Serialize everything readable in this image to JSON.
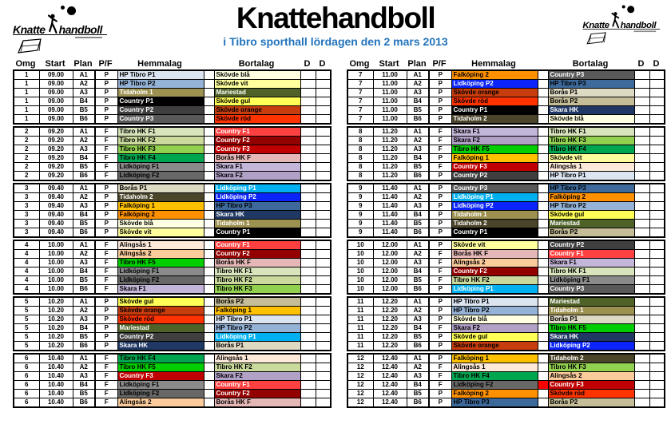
{
  "title": "Knattehandboll",
  "subtitle": "i Tibro sporthall lördagen den 2 mars 2013",
  "logo": {
    "word1": "Knatte",
    "word2": "handboll"
  },
  "columns": {
    "omg": "Omg",
    "start": "Start",
    "plan": "Plan",
    "pf": "P/F",
    "home": "Hemmalag",
    "away": "Bortalag",
    "d": "D"
  },
  "team_colors": {
    "HP Tibro P1": {
      "bg": "#DBE5F1",
      "fg": "#000000"
    },
    "HP Tibro P2": {
      "bg": "#95B3D7",
      "fg": "#000000"
    },
    "HP Tibro P3": {
      "bg": "#3D6A9B",
      "fg": "#000000"
    },
    "Tidaholm 1": {
      "bg": "#9C9150",
      "fg": "#FFFFFF"
    },
    "Tidaholm 2": {
      "bg": "#4A452A",
      "fg": "#FFFFFF"
    },
    "Mariestad": {
      "bg": "#4F6228",
      "fg": "#FFFFFF"
    },
    "Country P1": {
      "bg": "#000000",
      "fg": "#FFFFFF"
    },
    "Country P2": {
      "bg": "#3F3F3F",
      "fg": "#FFFFFF"
    },
    "Country P3": {
      "bg": "#595959",
      "fg": "#FFFFFF"
    },
    "Skövde blå": {
      "bg": "#FFFFE1",
      "fg": "#000000"
    },
    "Skövde vit": {
      "bg": "#FFFF9E",
      "fg": "#000000"
    },
    "Skövde gul": {
      "bg": "#FFFF55",
      "fg": "#000000"
    },
    "Skövde orange": {
      "bg": "#C83D0D",
      "fg": "#000000"
    },
    "Skövde röd": {
      "bg": "#FF3300",
      "fg": "#000000"
    },
    "Borås P1": {
      "bg": "#DDD9C3",
      "fg": "#000000"
    },
    "Borås P2": {
      "bg": "#C4BD97",
      "fg": "#000000"
    },
    "Falköping 1": {
      "bg": "#FFC000",
      "fg": "#000000"
    },
    "Falköping 2": {
      "bg": "#FF9100",
      "fg": "#000000"
    },
    "Lidköping P1": {
      "bg": "#00B0F0",
      "fg": "#FFFFFF"
    },
    "Lidköping P2": {
      "bg": "#0A24FA",
      "fg": "#FFFFFF"
    },
    "Skara HK": {
      "bg": "#1F3864",
      "fg": "#FFFFFF"
    },
    "Tibro HK F1": {
      "bg": "#D8E4BC",
      "fg": "#000000"
    },
    "Tibro HK F2": {
      "bg": "#C9DA9C",
      "fg": "#000000"
    },
    "Tibro HK F3": {
      "bg": "#92D050",
      "fg": "#000000"
    },
    "Tibro HK F4": {
      "bg": "#00A64F",
      "fg": "#000000"
    },
    "Tibro HK F5": {
      "bg": "#00CE00",
      "fg": "#000000"
    },
    "Country F1": {
      "bg": "#FF4040",
      "fg": "#FFFFFF"
    },
    "Country F2": {
      "bg": "#930000",
      "fg": "#FFFFFF"
    },
    "Country F3": {
      "bg": "#C00000",
      "fg": "#FFFFFF"
    },
    "Borås HK F": {
      "bg": "#E5B8B7",
      "fg": "#000000"
    },
    "Lidköping F1": {
      "bg": "#8B8B8B",
      "fg": "#000000"
    },
    "Lidköping F2": {
      "bg": "#686868",
      "fg": "#000000"
    },
    "Skara F1": {
      "bg": "#C4B6D8",
      "fg": "#000000"
    },
    "Skara F2": {
      "bg": "#B2A1C7",
      "fg": "#000000"
    },
    "Alingsås 1": {
      "bg": "#FDE9D9",
      "fg": "#000000"
    },
    "Alingsås 2": {
      "bg": "#FBCB9B",
      "fg": "#000000"
    }
  },
  "tables": [
    {
      "blocks": [
        {
          "omg": 1,
          "start": "09.00",
          "rows": [
            {
              "plan": "A1",
              "pf": "P",
              "home": "HP Tibro P1",
              "away": "Skövde blå"
            },
            {
              "plan": "A2",
              "pf": "P",
              "home": "HP Tibro P2",
              "away": "Skövde vit"
            },
            {
              "plan": "A3",
              "pf": "P",
              "home": "Tidaholm 1",
              "away": "Mariestad"
            },
            {
              "plan": "B4",
              "pf": "P",
              "home": "Country P1",
              "away": "Skövde gul"
            },
            {
              "plan": "B5",
              "pf": "P",
              "home": "Country P2",
              "away": "Skövde orange"
            },
            {
              "plan": "B6",
              "pf": "P",
              "home": "Country P3",
              "away": "Skövde röd"
            }
          ]
        },
        {
          "omg": 2,
          "start": "09.20",
          "rows": [
            {
              "plan": "A1",
              "pf": "F",
              "home": "Tibro HK F1",
              "away": "Country F1"
            },
            {
              "plan": "A2",
              "pf": "F",
              "home": "Tibro HK F2",
              "away": "Country F2"
            },
            {
              "plan": "A3",
              "pf": "F",
              "home": "Tibro HK F3",
              "away": "Country F3"
            },
            {
              "plan": "B4",
              "pf": "F",
              "home": "Tibro HK F4",
              "away": "Borås HK F"
            },
            {
              "plan": "B5",
              "pf": "F",
              "home": "Lidköping F1",
              "away": "Skara F1"
            },
            {
              "plan": "B6",
              "pf": "F",
              "home": "Lidköping F2",
              "away": "Skara F2"
            }
          ]
        },
        {
          "omg": 3,
          "start": "09.40",
          "rows": [
            {
              "plan": "A1",
              "pf": "P",
              "home": "Borås P1",
              "away": "Lidköping P1"
            },
            {
              "plan": "A2",
              "pf": "P",
              "home": "Tidaholm 2",
              "away": "Lidköping P2"
            },
            {
              "plan": "A3",
              "pf": "P",
              "home": "Falköping 1",
              "away": "HP Tibro P3"
            },
            {
              "plan": "B4",
              "pf": "P",
              "home": "Falköping 2",
              "away": "Skara HK"
            },
            {
              "plan": "B5",
              "pf": "P",
              "home": "Skövde blå",
              "away": "Tidaholm 1"
            },
            {
              "plan": "B6",
              "pf": "P",
              "home": "Skövde vit",
              "away": "Country P1"
            }
          ]
        },
        {
          "omg": 4,
          "start": "10.00",
          "rows": [
            {
              "plan": "A1",
              "pf": "F",
              "home": "Alingsås 1",
              "away": "Country F1"
            },
            {
              "plan": "A2",
              "pf": "F",
              "home": "Alingsås 2",
              "away": "Country F2"
            },
            {
              "plan": "A3",
              "pf": "F",
              "home": "Tibro HK F5",
              "away": "Borås HK F"
            },
            {
              "plan": "B4",
              "pf": "F",
              "home": "Lidköping F1",
              "away": "Tibro HK F1"
            },
            {
              "plan": "B5",
              "pf": "F",
              "home": "Lidköping F2",
              "away": "Tibro HK F2"
            },
            {
              "plan": "B6",
              "pf": "F",
              "home": "Skara F1",
              "away": "Tibro HK F3"
            }
          ]
        },
        {
          "omg": 5,
          "start": "10.20",
          "rows": [
            {
              "plan": "A1",
              "pf": "P",
              "home": "Skövde gul",
              "away": "Borås P2"
            },
            {
              "plan": "A2",
              "pf": "P",
              "home": "Skövde orange",
              "away": "Falköping 1"
            },
            {
              "plan": "A3",
              "pf": "P",
              "home": "Skövde röd",
              "away": "HP Tibro P1"
            },
            {
              "plan": "B4",
              "pf": "P",
              "home": "Mariestad",
              "away": "HP Tibro P2"
            },
            {
              "plan": "B5",
              "pf": "P",
              "home": "Country P2",
              "away": "Lidköping P1"
            },
            {
              "plan": "B6",
              "pf": "P",
              "home": "Skara HK",
              "away": "Borås P1"
            }
          ]
        },
        {
          "omg": 6,
          "start": "10.40",
          "rows": [
            {
              "plan": "A1",
              "pf": "F",
              "home": "Tibro HK F4",
              "away": "Alingsås 1"
            },
            {
              "plan": "A2",
              "pf": "F",
              "home": "Tibro HK F5",
              "away": "Tibro HK F2"
            },
            {
              "plan": "A3",
              "pf": "F",
              "home": "Country F3",
              "away": "Skara F2"
            },
            {
              "plan": "B4",
              "pf": "F",
              "home": "Lidköping F1",
              "away": "Country F1"
            },
            {
              "plan": "B5",
              "pf": "F",
              "home": "Lidköping F2",
              "away": "Country F2"
            },
            {
              "plan": "B6",
              "pf": "F",
              "home": "Alingsås 2",
              "away": "Borås HK F"
            }
          ]
        }
      ]
    },
    {
      "blocks": [
        {
          "omg": 7,
          "start": "11.00",
          "rows": [
            {
              "plan": "A1",
              "pf": "P",
              "home": "Falköping 2",
              "away": "Country P3"
            },
            {
              "plan": "A2",
              "pf": "P",
              "home": "Lidköping P2",
              "away": "HP Tibro P3"
            },
            {
              "plan": "A3",
              "pf": "P",
              "home": "Skövde orange",
              "away": "Borås P1"
            },
            {
              "plan": "B4",
              "pf": "P",
              "home": "Skövde röd",
              "away": "Borås P2"
            },
            {
              "plan": "B5",
              "pf": "P",
              "home": "Country P1",
              "away": "Skara HK"
            },
            {
              "plan": "B6",
              "pf": "P",
              "home": "Tidaholm 2",
              "away": "Skövde blå"
            }
          ]
        },
        {
          "omg": 8,
          "start": "11.20",
          "rows": [
            {
              "plan": "A1",
              "pf": "F",
              "home": "Skara F1",
              "away": "Tibro HK F1"
            },
            {
              "plan": "A2",
              "pf": "F",
              "home": "Skara F2",
              "away": "Tibro HK F3"
            },
            {
              "plan": "A3",
              "pf": "F",
              "home": "Tibro HK F5",
              "away": "Tibro HK F4"
            },
            {
              "plan": "B4",
              "pf": "P",
              "home": "Falköping 1",
              "away": "Skövde vit"
            },
            {
              "plan": "B5",
              "pf": "F",
              "home": "Country F3",
              "away": "Alingsås 1"
            },
            {
              "plan": "B6",
              "pf": "P",
              "home": "Country P2",
              "away": "HP Tibro P1"
            }
          ]
        },
        {
          "omg": 9,
          "start": "11.40",
          "rows": [
            {
              "plan": "A1",
              "pf": "P",
              "home": "Country P3",
              "away": "HP Tibro P3"
            },
            {
              "plan": "A2",
              "pf": "P",
              "home": "Lidköping P1",
              "away": "Falköping 2"
            },
            {
              "plan": "A3",
              "pf": "P",
              "home": "Lidköping P2",
              "away": "HP Tibro P2"
            },
            {
              "plan": "B4",
              "pf": "P",
              "home": "Tidaholm 1",
              "away": "Skövde gul"
            },
            {
              "plan": "B5",
              "pf": "P",
              "home": "Tidaholm 2",
              "away": "Mariestad"
            },
            {
              "plan": "B6",
              "pf": "P",
              "home": "Country P1",
              "away": "Borås P2"
            }
          ]
        },
        {
          "omg": 10,
          "start": "12.00",
          "rows": [
            {
              "plan": "A1",
              "pf": "P",
              "home": "Skövde vit",
              "away": "Country P2"
            },
            {
              "plan": "A2",
              "pf": "F",
              "home": "Borås HK F",
              "away": "Country F1"
            },
            {
              "plan": "A3",
              "pf": "F",
              "home": "Alingsås 2",
              "away": "Skara F1"
            },
            {
              "plan": "B4",
              "pf": "F",
              "home": "Country F2",
              "away": "Tibro HK F1"
            },
            {
              "plan": "B5",
              "pf": "F",
              "home": "Tibro HK F2",
              "away": "Lidköping F1"
            },
            {
              "plan": "B6",
              "pf": "P",
              "home": "Lidköping P1",
              "away": "Country P3"
            }
          ]
        },
        {
          "omg": 11,
          "start": "12.20",
          "rows": [
            {
              "plan": "A1",
              "pf": "P",
              "home": "HP Tibro P1",
              "away": "Mariestad"
            },
            {
              "plan": "A2",
              "pf": "P",
              "home": "HP Tibro P2",
              "away": "Tidaholm 1"
            },
            {
              "plan": "A3",
              "pf": "P",
              "home": "Skövde blå",
              "away": "Borås P1"
            },
            {
              "plan": "B4",
              "pf": "F",
              "home": "Skara F2",
              "away": "Tibro HK F5"
            },
            {
              "plan": "B5",
              "pf": "P",
              "home": "Skövde gul",
              "away": "Skara HK"
            },
            {
              "plan": "B6",
              "pf": "P",
              "home": "Skövde orange",
              "away": "Lidköping P2"
            }
          ]
        },
        {
          "omg": 12,
          "start": "12.40",
          "rows": [
            {
              "plan": "A1",
              "pf": "P",
              "home": "Falköping 1",
              "away": "Tidaholm 2"
            },
            {
              "plan": "A2",
              "pf": "F",
              "home": "Alingsås 1",
              "away": "Tibro HK F3"
            },
            {
              "plan": "A3",
              "pf": "F",
              "home": "Tibro HK F4",
              "away": "Alingsås 2"
            },
            {
              "plan": "B4",
              "pf": "F",
              "home": "Lidköping F2",
              "away": "Country F3",
              "spacer": "#FF0000"
            },
            {
              "plan": "B5",
              "pf": "P",
              "home": "Falköping 2",
              "away": "Skövde röd"
            },
            {
              "plan": "B6",
              "pf": "P",
              "home": "HP Tibro P3",
              "away": "Borås P2"
            }
          ]
        }
      ]
    }
  ]
}
